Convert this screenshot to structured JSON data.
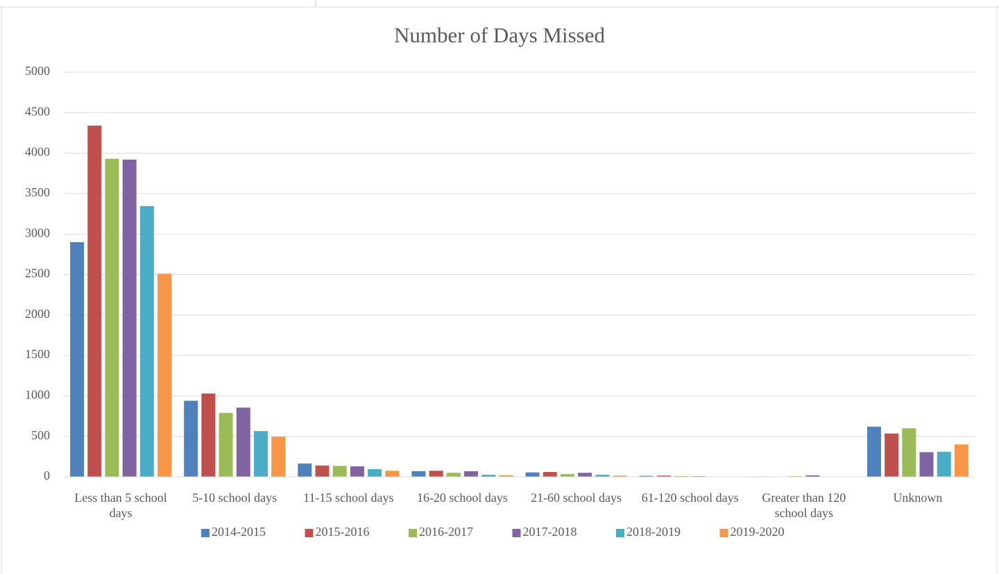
{
  "chart_data": {
    "type": "bar",
    "title": "Number of Days Missed",
    "categories": [
      "Less than 5 school days",
      "5-10 school days",
      "11-15 school days",
      "16-20 school days",
      "21-60 school days",
      "61-120 school days",
      "Greater than 120 school days",
      "Unknown"
    ],
    "series": [
      {
        "name": "2014-2015",
        "color": "#4f81bd",
        "values": [
          2900,
          940,
          165,
          70,
          55,
          12,
          5,
          620
        ]
      },
      {
        "name": "2015-2016",
        "color": "#c0504d",
        "values": [
          4340,
          1030,
          140,
          75,
          60,
          15,
          4,
          535
        ]
      },
      {
        "name": "2016-2017",
        "color": "#9bbb59",
        "values": [
          3930,
          790,
          135,
          50,
          35,
          10,
          8,
          600
        ]
      },
      {
        "name": "2017-2018",
        "color": "#8064a2",
        "values": [
          3920,
          855,
          130,
          70,
          50,
          8,
          18,
          305
        ]
      },
      {
        "name": "2018-2019",
        "color": "#4bacc6",
        "values": [
          3345,
          565,
          95,
          25,
          25,
          3,
          2,
          310
        ]
      },
      {
        "name": "2019-2020",
        "color": "#f79646",
        "values": [
          2510,
          495,
          75,
          20,
          15,
          2,
          1,
          400
        ]
      }
    ],
    "ylim": [
      0,
      5000
    ],
    "yticks": [
      0,
      500,
      1000,
      1500,
      2000,
      2500,
      3000,
      3500,
      4000,
      4500,
      5000
    ],
    "grid": true,
    "legend": "bottom"
  }
}
